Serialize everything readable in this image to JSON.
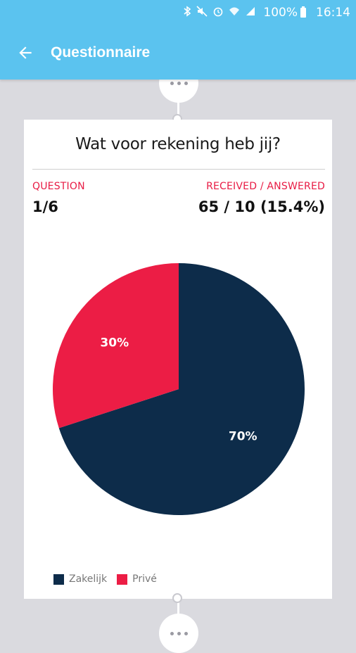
{
  "status_bar": {
    "battery_text": "100%",
    "time": "16:14",
    "icons": [
      "bluetooth-icon",
      "mute-icon",
      "alarm-icon",
      "wifi-icon",
      "signal-icon",
      "battery-icon"
    ]
  },
  "app_bar": {
    "title": "Questionnaire",
    "back_icon": "arrow-left-icon"
  },
  "card": {
    "question": "Wat voor rekening heb jij?",
    "question_label": "QUESTION",
    "question_value": "1/6",
    "received_label": "RECEIVED / ANSWERED",
    "received_value": "65 / 10 (15.4%)"
  },
  "colors": {
    "accent": "#5bc3ef",
    "zakelijk": "#0d2c4a",
    "prive": "#ec1d45",
    "label_red": "#e81b44"
  },
  "chart_data": {
    "type": "pie",
    "categories": [
      "Zakelijk",
      "Privé"
    ],
    "values": [
      70,
      30
    ],
    "data_labels": [
      "70%",
      "30%"
    ],
    "legend_placement": "bottom-left"
  }
}
